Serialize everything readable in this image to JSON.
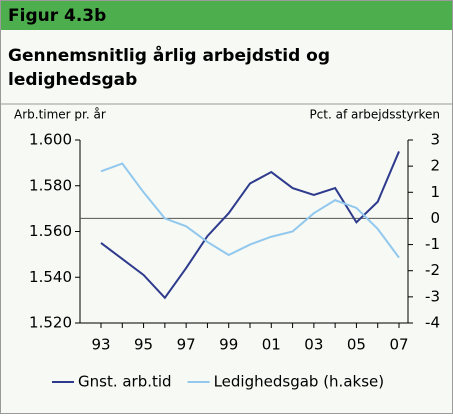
{
  "header": "Figur 4.3b",
  "chart_data": {
    "type": "line",
    "title": "Gennemsnitlig årlig arbejdstid og ledighedsgab",
    "ylabel": "Arb.timer pr. år",
    "y2label": "Pct. af arbejdsstyrken",
    "categories": [
      "93",
      null,
      "95",
      null,
      "97",
      null,
      "99",
      null,
      "01",
      null,
      "03",
      null,
      "05",
      null,
      "07"
    ],
    "series": [
      {
        "name": "Gnst. arb.tid",
        "color": "#2e3a8c",
        "axis": "y",
        "values": [
          1555,
          1548,
          1541,
          1531,
          1544,
          1558,
          1568,
          1581,
          1586,
          1579,
          1576,
          1579,
          1564,
          1573,
          1595
        ]
      },
      {
        "name": "Ledighedsgab (h.akse)",
        "color": "#92c8ee",
        "axis": "y2",
        "values": [
          1.8,
          2.1,
          1.0,
          0,
          -0.3,
          -0.9,
          -1.4,
          -1.0,
          -0.7,
          -0.5,
          0.2,
          0.7,
          0.4,
          -0.4,
          -1.5
        ]
      }
    ],
    "ylim": [
      1520,
      1600
    ],
    "yticks": [
      {
        "value": 1520,
        "label": "1.520"
      },
      {
        "value": 1540,
        "label": "1.540"
      },
      {
        "value": 1560,
        "label": "1.560"
      },
      {
        "value": 1580,
        "label": "1.580"
      },
      {
        "value": 1600,
        "label": "1.600"
      }
    ],
    "y2lim": [
      -4,
      3
    ],
    "y2ticks": [
      -4,
      -3,
      -2,
      -1,
      0,
      1,
      2,
      3
    ],
    "legend": "bottom"
  }
}
